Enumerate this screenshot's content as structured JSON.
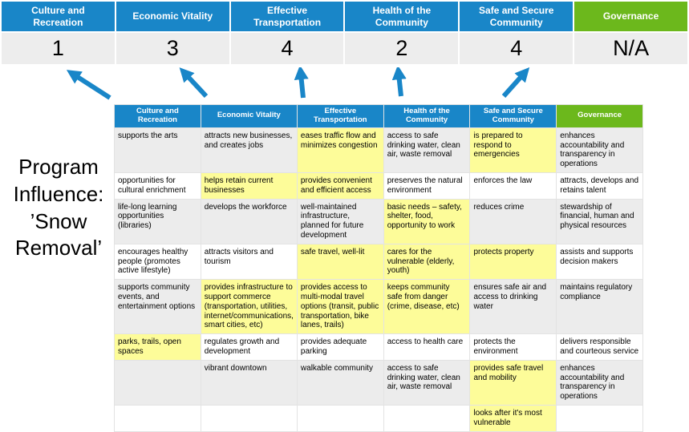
{
  "title": {
    "text": "Program Influence: ’Snow Removal’"
  },
  "colors": {
    "pillar_blue": "#1986C8",
    "governance_green": "#6CB81C",
    "highlight": "#FDFC99",
    "band": "#ECECEC",
    "score_bg": "#EDEDED",
    "arrow": "#1986C8"
  },
  "scoreboard": {
    "columns": [
      {
        "label": "Culture and Recreation",
        "score": "1",
        "color": "#1986C8"
      },
      {
        "label": "Economic Vitality",
        "score": "3",
        "color": "#1986C8"
      },
      {
        "label": "Effective Transportation",
        "score": "4",
        "color": "#1986C8"
      },
      {
        "label": "Health of the Community",
        "score": "2",
        "color": "#1986C8"
      },
      {
        "label": "Safe and Secure Community",
        "score": "4",
        "color": "#1986C8"
      },
      {
        "label": "Governance",
        "score": "N/A",
        "color": "#6CB81C"
      }
    ]
  },
  "matrix": {
    "headers": [
      {
        "label": "Culture and Recreation",
        "color": "#1986C8"
      },
      {
        "label": "Economic Vitality",
        "color": "#1986C8"
      },
      {
        "label": "Effective Transportation",
        "color": "#1986C8"
      },
      {
        "label": "Health of the Community",
        "color": "#1986C8"
      },
      {
        "label": "Safe and Secure Community",
        "color": "#1986C8"
      },
      {
        "label": "Governance",
        "color": "#6CB81C"
      }
    ],
    "rows": [
      [
        {
          "text": "supports the arts",
          "highlight": false
        },
        {
          "text": "attracts new businesses, and creates jobs",
          "highlight": false
        },
        {
          "text": "eases traffic flow and minimizes congestion",
          "highlight": true
        },
        {
          "text": "access to safe drinking water, clean air, waste removal",
          "highlight": false
        },
        {
          "text": "is prepared to respond to emergencies",
          "highlight": true
        },
        {
          "text": "enhances accountability and transparency in operations",
          "highlight": false
        }
      ],
      [
        {
          "text": "opportunities for cultural enrichment",
          "highlight": false
        },
        {
          "text": "helps retain current businesses",
          "highlight": true
        },
        {
          "text": "provides convenient and efficient access",
          "highlight": true
        },
        {
          "text": "preserves the natural environment",
          "highlight": false
        },
        {
          "text": "enforces the law",
          "highlight": false
        },
        {
          "text": "attracts, develops and retains talent",
          "highlight": false
        }
      ],
      [
        {
          "text": "life-long learning opportunities (libraries)",
          "highlight": false
        },
        {
          "text": "develops the workforce",
          "highlight": false
        },
        {
          "text": "well-maintained infrastructure, planned for future development",
          "highlight": false
        },
        {
          "text": "basic needs – safety, shelter, food, opportunity to work",
          "highlight": true
        },
        {
          "text": "reduces crime",
          "highlight": false
        },
        {
          "text": "stewardship of financial, human and physical resources",
          "highlight": false
        }
      ],
      [
        {
          "text": "encourages healthy people (promotes active lifestyle)",
          "highlight": false
        },
        {
          "text": "attracts visitors and tourism",
          "highlight": false
        },
        {
          "text": "safe travel, well-lit",
          "highlight": true
        },
        {
          "text": "cares for the vulnerable (elderly, youth)",
          "highlight": true
        },
        {
          "text": "protects property",
          "highlight": true
        },
        {
          "text": "assists and supports decision makers",
          "highlight": false
        }
      ],
      [
        {
          "text": "supports community events, and entertainment options",
          "highlight": false
        },
        {
          "text": "provides infrastructure to support commerce (transportation, utilities, internet/communications, smart cities, etc)",
          "highlight": true
        },
        {
          "text": "provides access to multi-modal travel options (transit, public transportation, bike lanes, trails)",
          "highlight": true
        },
        {
          "text": "keeps community safe from danger (crime, disease, etc)",
          "highlight": true
        },
        {
          "text": "ensures safe air and access to drinking water",
          "highlight": false
        },
        {
          "text": "maintains regulatory compliance",
          "highlight": false
        }
      ],
      [
        {
          "text": "parks, trails, open spaces",
          "highlight": true
        },
        {
          "text": "regulates growth and development",
          "highlight": false
        },
        {
          "text": "provides adequate parking",
          "highlight": false
        },
        {
          "text": "access to health care",
          "highlight": false
        },
        {
          "text": "protects the environment",
          "highlight": false
        },
        {
          "text": "delivers responsible and courteous service",
          "highlight": false
        }
      ],
      [
        {
          "text": "",
          "highlight": false
        },
        {
          "text": "vibrant downtown",
          "highlight": false
        },
        {
          "text": "walkable community",
          "highlight": false
        },
        {
          "text": "access to safe drinking water, clean air, waste removal",
          "highlight": false
        },
        {
          "text": "provides safe travel and mobility",
          "highlight": true
        },
        {
          "text": "enhances accountability and transparency in operations",
          "highlight": false
        }
      ],
      [
        {
          "text": "",
          "highlight": false
        },
        {
          "text": "",
          "highlight": false
        },
        {
          "text": "",
          "highlight": false
        },
        {
          "text": "",
          "highlight": false
        },
        {
          "text": "looks after it's most vulnerable",
          "highlight": true
        },
        {
          "text": "",
          "highlight": false
        }
      ]
    ]
  },
  "arrows": {
    "count": 5,
    "color": "#1986C8"
  }
}
